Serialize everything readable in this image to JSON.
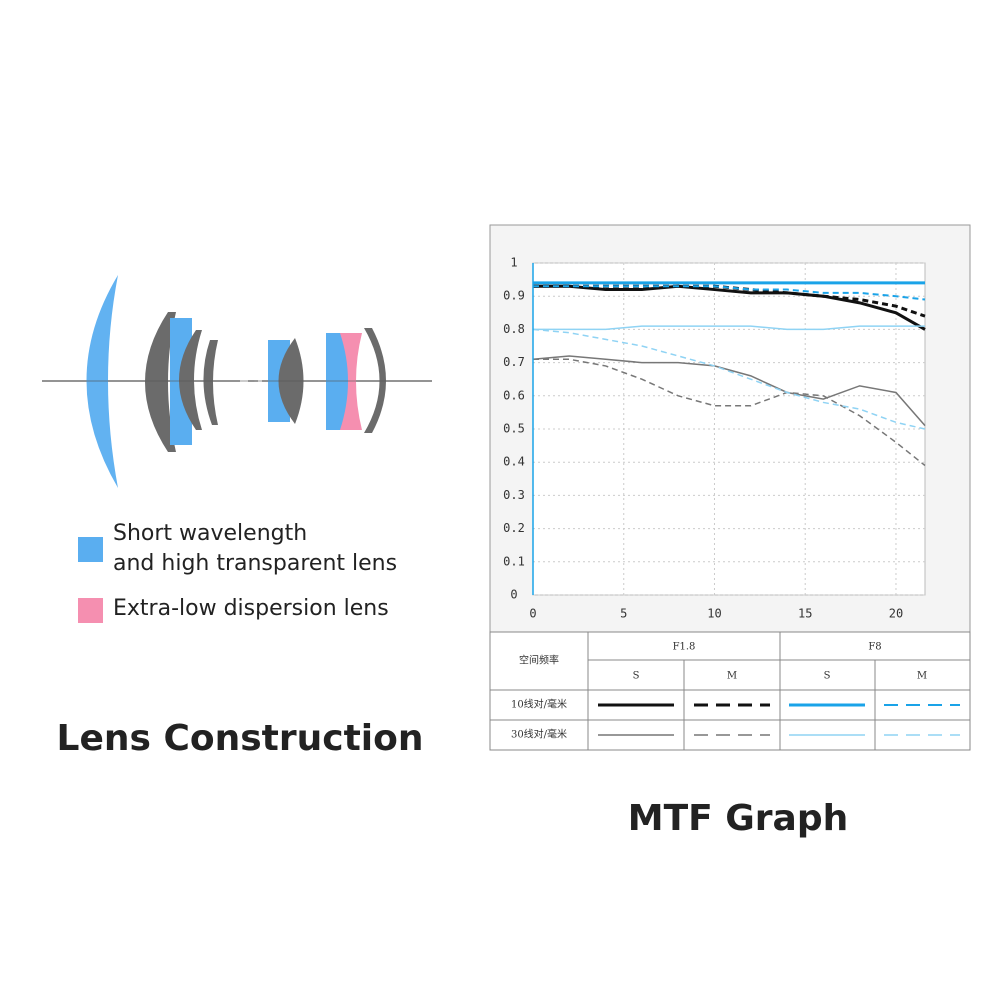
{
  "lens_construction": {
    "title": "Lens Construction",
    "legend": [
      {
        "lines": [
          "Short wavelength",
          "and high transparent lens"
        ],
        "color": "#5aaef0"
      },
      {
        "lines": [
          "Extra-low dispersion lens"
        ],
        "color": "#f58fb0"
      }
    ]
  },
  "chart_data": {
    "type": "line",
    "title": "MTF Graph",
    "x": [
      0,
      2,
      4,
      6,
      8,
      10,
      12,
      14,
      16,
      18,
      20,
      21.6
    ],
    "xlim": [
      0,
      21.6
    ],
    "xticks": [
      0,
      5,
      10,
      15,
      20
    ],
    "ylim": [
      0,
      1
    ],
    "yticks": [
      0,
      0.1,
      0.2,
      0.3,
      0.4,
      0.5,
      0.6,
      0.7,
      0.8,
      0.9,
      1
    ],
    "grid": true,
    "series": [
      {
        "color": "#111111",
        "dash": false,
        "width": 3,
        "values": [
          0.93,
          0.93,
          0.92,
          0.92,
          0.93,
          0.92,
          0.91,
          0.91,
          0.9,
          0.88,
          0.85,
          0.8
        ]
      },
      {
        "color": "#111111",
        "dash": true,
        "width": 3,
        "values": [
          0.93,
          0.93,
          0.93,
          0.93,
          0.93,
          0.93,
          0.92,
          0.91,
          0.9,
          0.89,
          0.87,
          0.84
        ]
      },
      {
        "color": "#1aa3e8",
        "dash": false,
        "width": 3,
        "values": [
          0.94,
          0.94,
          0.94,
          0.94,
          0.94,
          0.94,
          0.94,
          0.94,
          0.94,
          0.94,
          0.94,
          0.94
        ]
      },
      {
        "color": "#1aa3e8",
        "dash": true,
        "width": 2,
        "values": [
          0.93,
          0.93,
          0.93,
          0.93,
          0.93,
          0.93,
          0.92,
          0.92,
          0.91,
          0.91,
          0.9,
          0.89
        ]
      },
      {
        "color": "#777777",
        "dash": false,
        "width": 1.5,
        "values": [
          0.71,
          0.72,
          0.71,
          0.7,
          0.7,
          0.69,
          0.66,
          0.61,
          0.59,
          0.63,
          0.61,
          0.51
        ]
      },
      {
        "color": "#777777",
        "dash": true,
        "width": 1.5,
        "values": [
          0.71,
          0.71,
          0.69,
          0.65,
          0.6,
          0.57,
          0.57,
          0.61,
          0.6,
          0.54,
          0.46,
          0.39
        ]
      },
      {
        "color": "#8fd3f4",
        "dash": false,
        "width": 1.5,
        "values": [
          0.8,
          0.8,
          0.8,
          0.81,
          0.81,
          0.81,
          0.81,
          0.8,
          0.8,
          0.81,
          0.81,
          0.81
        ]
      },
      {
        "color": "#8fd3f4",
        "dash": true,
        "width": 1.5,
        "values": [
          0.8,
          0.79,
          0.77,
          0.75,
          0.72,
          0.69,
          0.65,
          0.61,
          0.58,
          0.56,
          0.52,
          0.5
        ]
      }
    ],
    "legend_table": {
      "header": "空间频率",
      "apertures": [
        "F1.8",
        "F8"
      ],
      "positions": [
        "S",
        "M",
        "S",
        "M"
      ],
      "rows": [
        "10线对/毫米",
        "30线对/毫米"
      ]
    }
  }
}
